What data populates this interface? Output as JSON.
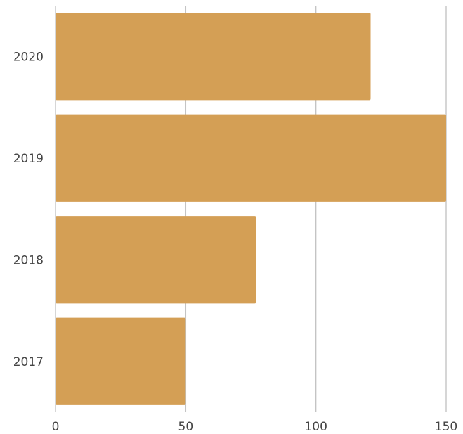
{
  "chart_data": {
    "type": "bar",
    "orientation": "horizontal",
    "categories": [
      "2020",
      "2019",
      "2018",
      "2017"
    ],
    "values": [
      121,
      150,
      77,
      50
    ],
    "xlim": [
      0,
      150
    ],
    "x_ticks": [
      "0",
      "50",
      "100",
      "150"
    ],
    "grid": "vertical",
    "title": "",
    "xlabel": "",
    "ylabel": "",
    "colors": {
      "bar": "#d49f55"
    }
  }
}
